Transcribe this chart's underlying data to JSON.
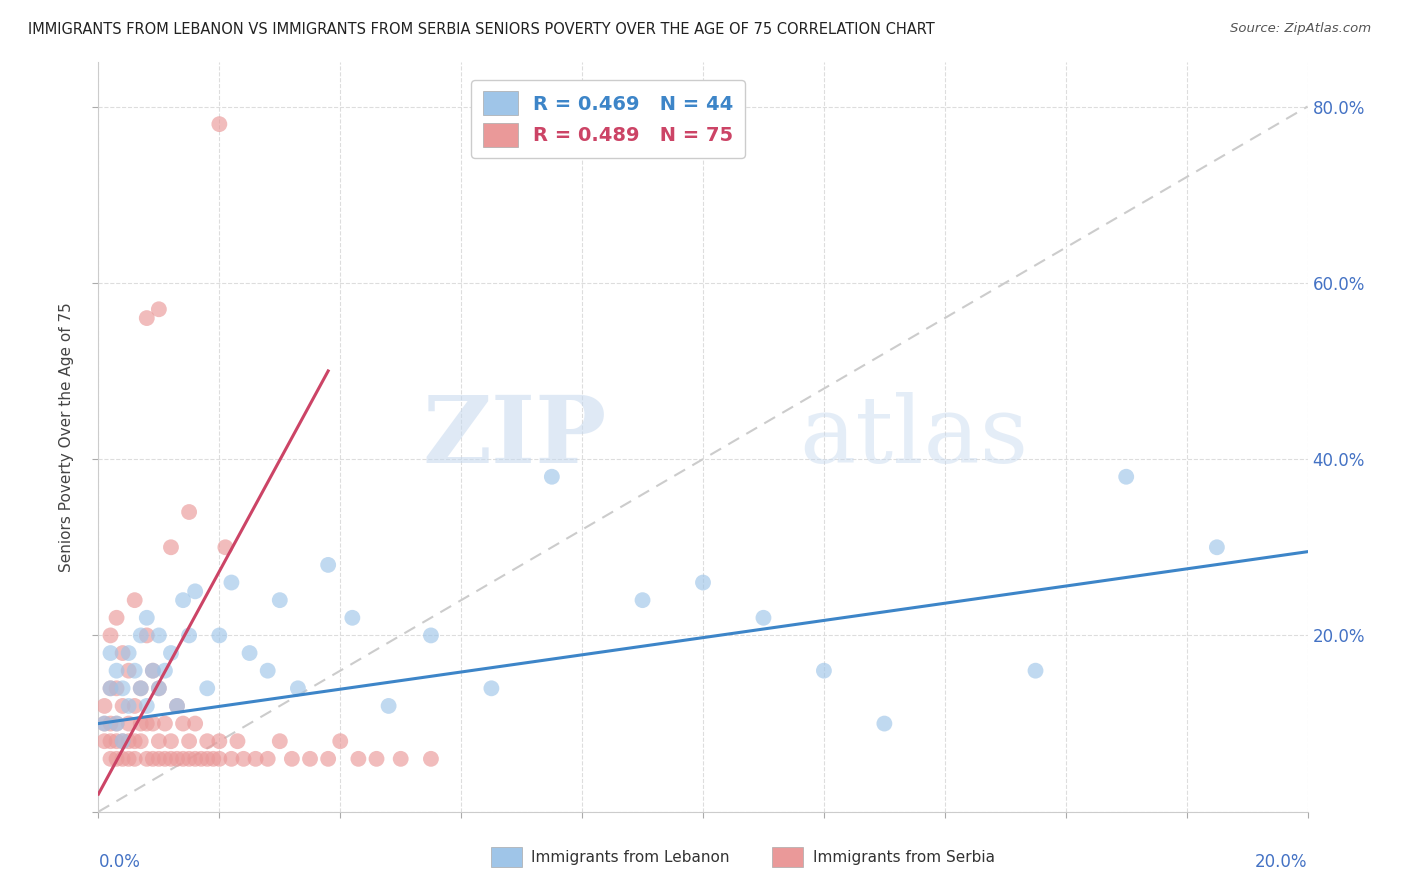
{
  "title": "IMMIGRANTS FROM LEBANON VS IMMIGRANTS FROM SERBIA SENIORS POVERTY OVER THE AGE OF 75 CORRELATION CHART",
  "source": "Source: ZipAtlas.com",
  "ylabel": "Seniors Poverty Over the Age of 75",
  "legend_lebanon": "Immigrants from Lebanon",
  "legend_serbia": "Immigrants from Serbia",
  "R_lebanon": 0.469,
  "N_lebanon": 44,
  "R_serbia": 0.489,
  "N_serbia": 75,
  "color_lebanon": "#9fc5e8",
  "color_serbia": "#ea9999",
  "color_lebanon_line": "#3d85c8",
  "color_serbia_line": "#cc4466",
  "xlim": [
    0.0,
    0.2
  ],
  "ylim": [
    0.0,
    0.85
  ],
  "ytick_positions": [
    0.0,
    0.2,
    0.4,
    0.6,
    0.8
  ],
  "ytick_labels": [
    "",
    "20.0%",
    "40.0%",
    "60.0%",
    "80.0%"
  ],
  "watermark_zip": "ZIP",
  "watermark_atlas": "atlas",
  "lebanon_x": [
    0.001,
    0.002,
    0.002,
    0.003,
    0.003,
    0.004,
    0.004,
    0.005,
    0.005,
    0.006,
    0.007,
    0.007,
    0.008,
    0.008,
    0.009,
    0.01,
    0.01,
    0.011,
    0.012,
    0.013,
    0.014,
    0.015,
    0.016,
    0.018,
    0.02,
    0.022,
    0.025,
    0.028,
    0.03,
    0.033,
    0.038,
    0.042,
    0.048,
    0.055,
    0.065,
    0.075,
    0.09,
    0.1,
    0.11,
    0.12,
    0.13,
    0.155,
    0.17,
    0.185
  ],
  "lebanon_y": [
    0.1,
    0.14,
    0.18,
    0.1,
    0.16,
    0.08,
    0.14,
    0.12,
    0.18,
    0.16,
    0.2,
    0.14,
    0.12,
    0.22,
    0.16,
    0.14,
    0.2,
    0.16,
    0.18,
    0.12,
    0.24,
    0.2,
    0.25,
    0.14,
    0.2,
    0.26,
    0.18,
    0.16,
    0.24,
    0.14,
    0.28,
    0.22,
    0.12,
    0.2,
    0.14,
    0.38,
    0.24,
    0.26,
    0.22,
    0.16,
    0.1,
    0.16,
    0.38,
    0.3
  ],
  "serbia_x": [
    0.001,
    0.001,
    0.001,
    0.002,
    0.002,
    0.002,
    0.002,
    0.002,
    0.003,
    0.003,
    0.003,
    0.003,
    0.003,
    0.004,
    0.004,
    0.004,
    0.004,
    0.005,
    0.005,
    0.005,
    0.005,
    0.006,
    0.006,
    0.006,
    0.006,
    0.007,
    0.007,
    0.007,
    0.008,
    0.008,
    0.008,
    0.009,
    0.009,
    0.009,
    0.01,
    0.01,
    0.01,
    0.011,
    0.011,
    0.012,
    0.012,
    0.013,
    0.013,
    0.014,
    0.014,
    0.015,
    0.015,
    0.016,
    0.016,
    0.017,
    0.018,
    0.018,
    0.019,
    0.02,
    0.02,
    0.021,
    0.022,
    0.023,
    0.024,
    0.026,
    0.028,
    0.03,
    0.032,
    0.035,
    0.038,
    0.04,
    0.043,
    0.046,
    0.05,
    0.055,
    0.01,
    0.015,
    0.02,
    0.008,
    0.012
  ],
  "serbia_y": [
    0.08,
    0.1,
    0.12,
    0.06,
    0.08,
    0.1,
    0.14,
    0.2,
    0.06,
    0.08,
    0.1,
    0.14,
    0.22,
    0.06,
    0.08,
    0.12,
    0.18,
    0.06,
    0.08,
    0.1,
    0.16,
    0.06,
    0.08,
    0.12,
    0.24,
    0.08,
    0.1,
    0.14,
    0.06,
    0.1,
    0.2,
    0.06,
    0.1,
    0.16,
    0.06,
    0.08,
    0.14,
    0.06,
    0.1,
    0.06,
    0.08,
    0.06,
    0.12,
    0.06,
    0.1,
    0.06,
    0.08,
    0.06,
    0.1,
    0.06,
    0.06,
    0.08,
    0.06,
    0.06,
    0.08,
    0.3,
    0.06,
    0.08,
    0.06,
    0.06,
    0.06,
    0.08,
    0.06,
    0.06,
    0.06,
    0.08,
    0.06,
    0.06,
    0.06,
    0.06,
    0.57,
    0.34,
    0.78,
    0.56,
    0.3
  ],
  "serbia_line_x0": 0.0,
  "serbia_line_y0": 0.02,
  "serbia_line_x1": 0.038,
  "serbia_line_y1": 0.5,
  "lebanon_line_x0": 0.0,
  "lebanon_line_y0": 0.1,
  "lebanon_line_x1": 0.2,
  "lebanon_line_y1": 0.295
}
